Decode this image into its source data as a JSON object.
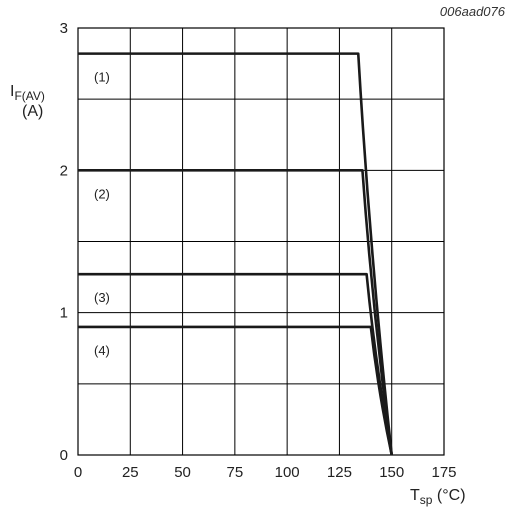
{
  "figure_code": "006aad076",
  "chart_data": {
    "type": "line",
    "title": "",
    "xlabel": {
      "main": "T",
      "sub": "sp",
      "unit": " (°C)"
    },
    "ylabel": {
      "main": "I",
      "sub": "F(AV)",
      "unit": "(A)"
    },
    "xlim": [
      0,
      175
    ],
    "ylim": [
      0,
      3
    ],
    "xticks": [
      0,
      25,
      50,
      75,
      100,
      125,
      150,
      175
    ],
    "yticks": [
      0,
      1,
      2,
      3
    ],
    "grid": true,
    "series": [
      {
        "name": "(1)",
        "x": [
          0,
          134,
          150
        ],
        "y": [
          2.82,
          2.82,
          0
        ]
      },
      {
        "name": "(2)",
        "x": [
          0,
          136,
          150
        ],
        "y": [
          2.0,
          2.0,
          0
        ]
      },
      {
        "name": "(3)",
        "x": [
          0,
          138,
          150
        ],
        "y": [
          1.27,
          1.27,
          0
        ]
      },
      {
        "name": "(4)",
        "x": [
          0,
          140,
          150
        ],
        "y": [
          0.9,
          0.9,
          0
        ]
      }
    ]
  }
}
